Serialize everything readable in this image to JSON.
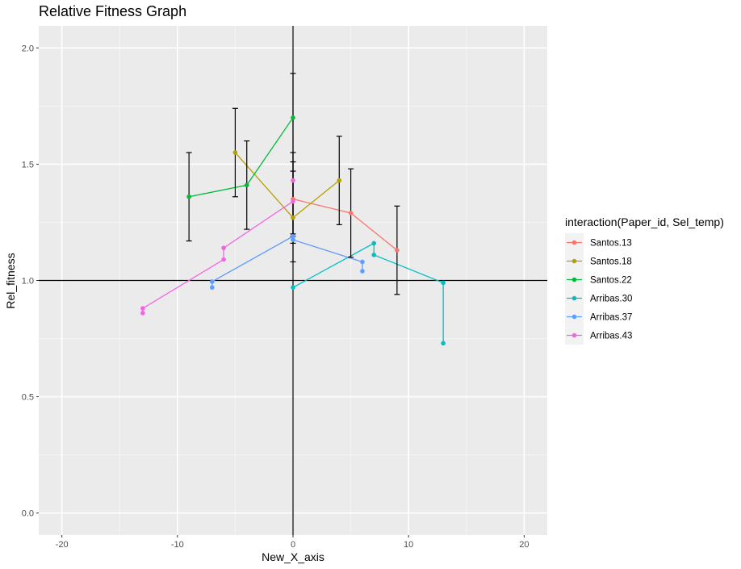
{
  "chart_data": {
    "type": "line",
    "title": "Relative Fitness Graph",
    "xlabel": "New_X_axis",
    "ylabel": "Rel_fitness",
    "xlim": [
      -22,
      22
    ],
    "ylim": [
      -0.095,
      2.095
    ],
    "x_ticks": [
      -20,
      -10,
      0,
      10,
      20
    ],
    "x_tick_labels": [
      "-20",
      "-10",
      "0",
      "10",
      "20"
    ],
    "y_ticks": [
      0,
      0.5,
      1,
      1.5,
      2
    ],
    "y_tick_labels": [
      "0.0",
      "0.5",
      "1.0",
      "1.5",
      "2.0"
    ],
    "grid": true,
    "legend_position": "right",
    "legend_title": "interaction(Paper_id, Sel_temp)",
    "reference_lines": {
      "hline_y": 1.0,
      "vline_x": 0
    },
    "series": [
      {
        "name": "Santos.13",
        "color": "#F8766D",
        "points": [
          [
            0,
            1.35
          ],
          [
            5,
            1.29
          ],
          [
            9,
            1.13
          ]
        ]
      },
      {
        "name": "Santos.18",
        "color": "#B79F00",
        "points": [
          [
            -5,
            1.55
          ],
          [
            0,
            1.27
          ],
          [
            4,
            1.43
          ]
        ]
      },
      {
        "name": "Santos.22",
        "color": "#00BA38",
        "points": [
          [
            -9,
            1.36
          ],
          [
            -4,
            1.41
          ],
          [
            0,
            1.7
          ]
        ]
      },
      {
        "name": "Arribas.30",
        "color": "#00BFC4",
        "points": [
          [
            0,
            0.97
          ],
          [
            7,
            1.16
          ],
          [
            7,
            1.11
          ],
          [
            13,
            0.99
          ],
          [
            13,
            0.73
          ]
        ]
      },
      {
        "name": "Arribas.37",
        "color": "#619CFF",
        "points": [
          [
            -7,
            0.97
          ],
          [
            -7,
            0.995
          ],
          [
            0,
            1.19
          ],
          [
            0,
            1.175
          ],
          [
            6,
            1.08
          ],
          [
            6,
            1.04
          ]
        ]
      },
      {
        "name": "Arribas.43",
        "color": "#F564E3",
        "points": [
          [
            -13,
            0.86
          ],
          [
            -13,
            0.88
          ],
          [
            -6,
            1.09
          ],
          [
            -6,
            1.14
          ],
          [
            0,
            1.34
          ],
          [
            0,
            1.43
          ]
        ]
      }
    ],
    "error_bars": [
      {
        "x": -9,
        "low": 1.17,
        "high": 1.55
      },
      {
        "x": -5,
        "low": 1.36,
        "high": 1.74
      },
      {
        "x": -4,
        "low": 1.22,
        "high": 1.6
      },
      {
        "x": 0,
        "low": 1.08,
        "high": 1.89
      },
      {
        "x": 0,
        "low": 1.16,
        "high": 1.55
      },
      {
        "x": 0,
        "low": 1.2,
        "high": 1.51
      },
      {
        "x": 0,
        "low": 1.19,
        "high": 1.47
      },
      {
        "x": 4,
        "low": 1.24,
        "high": 1.62
      },
      {
        "x": 5,
        "low": 1.1,
        "high": 1.48
      },
      {
        "x": 9,
        "low": 0.94,
        "high": 1.32
      }
    ]
  }
}
